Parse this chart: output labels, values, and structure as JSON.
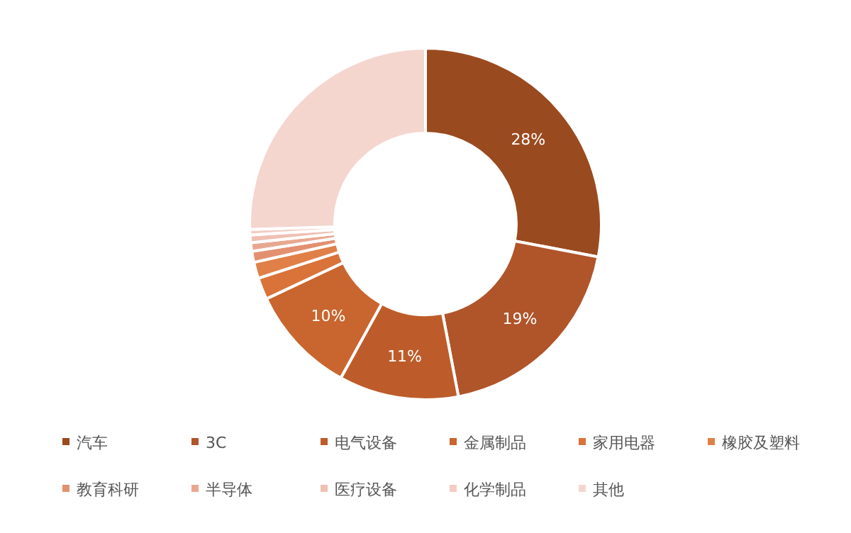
{
  "chart_data": {
    "type": "donut",
    "categories": [
      "汽车",
      "3C",
      "电气设备",
      "金属制品",
      "家用电器",
      "橡胶及塑料",
      "教育科研",
      "半导体",
      "医疗设备",
      "化学制品",
      "其他"
    ],
    "values": [
      28,
      19,
      11,
      10,
      2,
      1.5,
      1,
      0.8,
      0.7,
      0.5,
      25.5
    ],
    "value_labels": [
      "28%",
      "19%",
      "11%",
      "10%",
      null,
      null,
      null,
      null,
      null,
      null,
      null
    ],
    "colors": [
      "#9a4a1f",
      "#b0542a",
      "#bd5c2a",
      "#c9652e",
      "#d9733a",
      "#e08048",
      "#e39070",
      "#e8a890",
      "#efc0b4",
      "#f2cdc4",
      "#f4d6cf"
    ],
    "legend": "bottom"
  }
}
